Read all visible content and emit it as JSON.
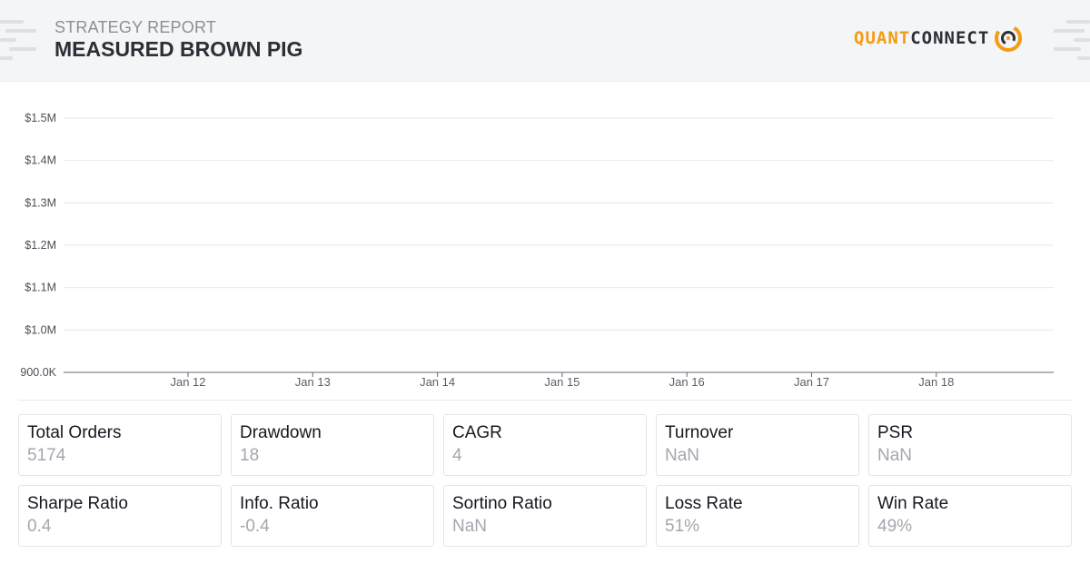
{
  "header": {
    "label": "STRATEGY REPORT",
    "title": "MEASURED BROWN PIG",
    "logo": {
      "quant": "QUANT",
      "connect": "CONNECT",
      "accent": "#f39c12"
    }
  },
  "chart_data": {
    "type": "line",
    "title": "",
    "xlabel": "",
    "ylabel": "",
    "y_ticks": [
      "$1.5M",
      "$1.4M",
      "$1.3M",
      "$1.2M",
      "$1.1M",
      "$1.0M",
      "900.0K"
    ],
    "y_tick_values": [
      1500000,
      1400000,
      1300000,
      1200000,
      1100000,
      1000000,
      900000
    ],
    "ylim": [
      900000,
      1500000
    ],
    "x_ticks": [
      "Jan 12",
      "Jan 13",
      "Jan 14",
      "Jan 15",
      "Jan 16",
      "Jan 17",
      "Jan 18"
    ],
    "series": [],
    "grid": true,
    "gridline_color": "#e6e8eb",
    "axis_color": "#666a70"
  },
  "stats": [
    {
      "label": "Total Orders",
      "value": "5174"
    },
    {
      "label": "Drawdown",
      "value": "18"
    },
    {
      "label": "CAGR",
      "value": "4"
    },
    {
      "label": "Turnover",
      "value": "NaN"
    },
    {
      "label": "PSR",
      "value": "NaN"
    },
    {
      "label": "Sharpe Ratio",
      "value": "0.4"
    },
    {
      "label": "Info. Ratio",
      "value": "-0.4"
    },
    {
      "label": "Sortino Ratio",
      "value": "NaN"
    },
    {
      "label": "Loss Rate",
      "value": "51%"
    },
    {
      "label": "Win Rate",
      "value": "49%"
    }
  ]
}
